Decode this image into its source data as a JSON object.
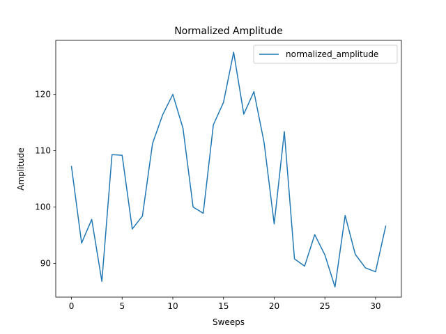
{
  "chart_data": {
    "type": "line",
    "title": "Normalized Amplitude",
    "xlabel": "Sweeps",
    "ylabel": "Amplitude",
    "xlim": [
      -1.55,
      32.55
    ],
    "ylim": [
      84.0,
      129.6
    ],
    "x_ticks": [
      0,
      5,
      10,
      15,
      20,
      25,
      30
    ],
    "y_ticks": [
      90,
      100,
      110,
      120
    ],
    "grid": false,
    "legend_position": "top-right",
    "series": [
      {
        "name": "normalized_amplitude",
        "color": "#1f77b4",
        "x": [
          0,
          1,
          2,
          3,
          4,
          5,
          6,
          7,
          8,
          9,
          10,
          11,
          12,
          13,
          14,
          15,
          16,
          17,
          18,
          19,
          20,
          21,
          22,
          23,
          24,
          25,
          26,
          27,
          28,
          29,
          30,
          31
        ],
        "values": [
          107.2,
          93.6,
          97.8,
          86.8,
          109.3,
          109.2,
          96.1,
          98.4,
          111.3,
          116.4,
          120.0,
          114.0,
          100.0,
          98.9,
          114.6,
          118.6,
          127.5,
          116.5,
          120.5,
          111.5,
          97.0,
          113.4,
          90.8,
          89.5,
          95.1,
          91.5,
          85.8,
          98.5,
          91.6,
          89.2,
          88.5,
          96.6
        ]
      }
    ]
  }
}
